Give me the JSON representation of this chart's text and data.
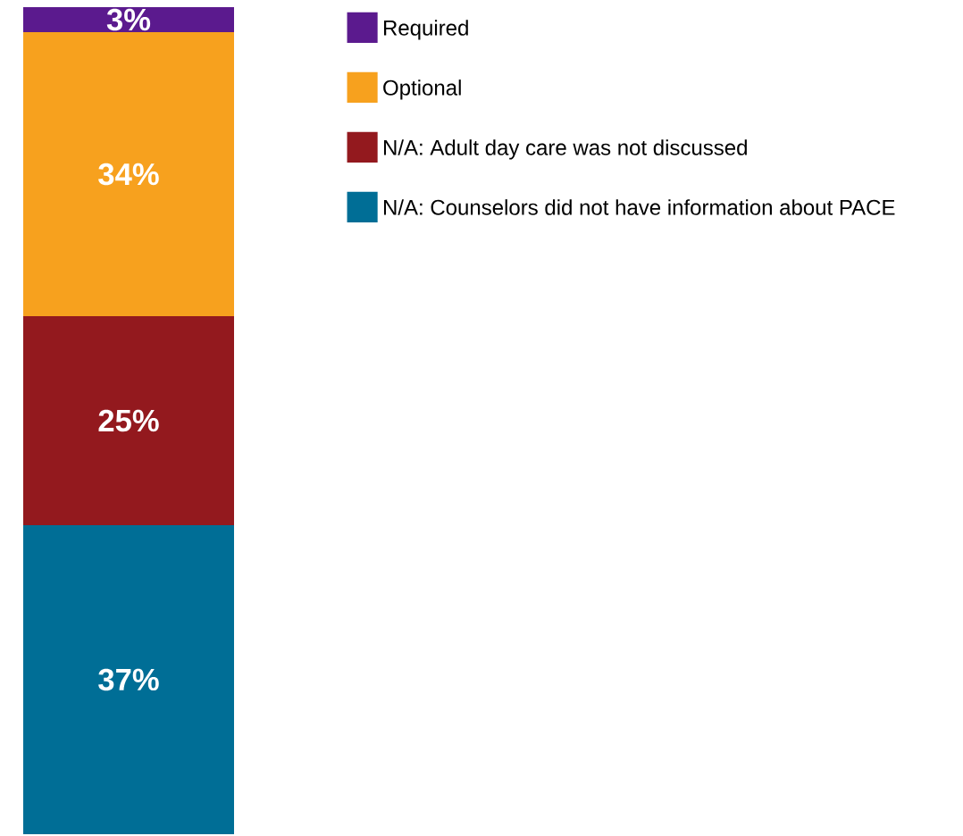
{
  "chart_data": {
    "type": "bar",
    "stacked": true,
    "categories": [
      null
    ],
    "legend": "right",
    "series": [
      {
        "name": "N/A: Counselors did not have information about PACE",
        "color": "#006e96",
        "values": [
          37
        ],
        "value_labels": [
          "37%"
        ]
      },
      {
        "name": "N/A: Adult day care was not discussed",
        "color": "#93191e",
        "values": [
          25
        ],
        "value_labels": [
          "25%"
        ]
      },
      {
        "name": "Optional",
        "color": "#f7a11e",
        "values": [
          34
        ],
        "value_labels": [
          "34%"
        ]
      },
      {
        "name": "Required",
        "color": "#5b1a8e",
        "values": [
          3
        ],
        "value_labels": [
          "3%"
        ]
      }
    ]
  }
}
